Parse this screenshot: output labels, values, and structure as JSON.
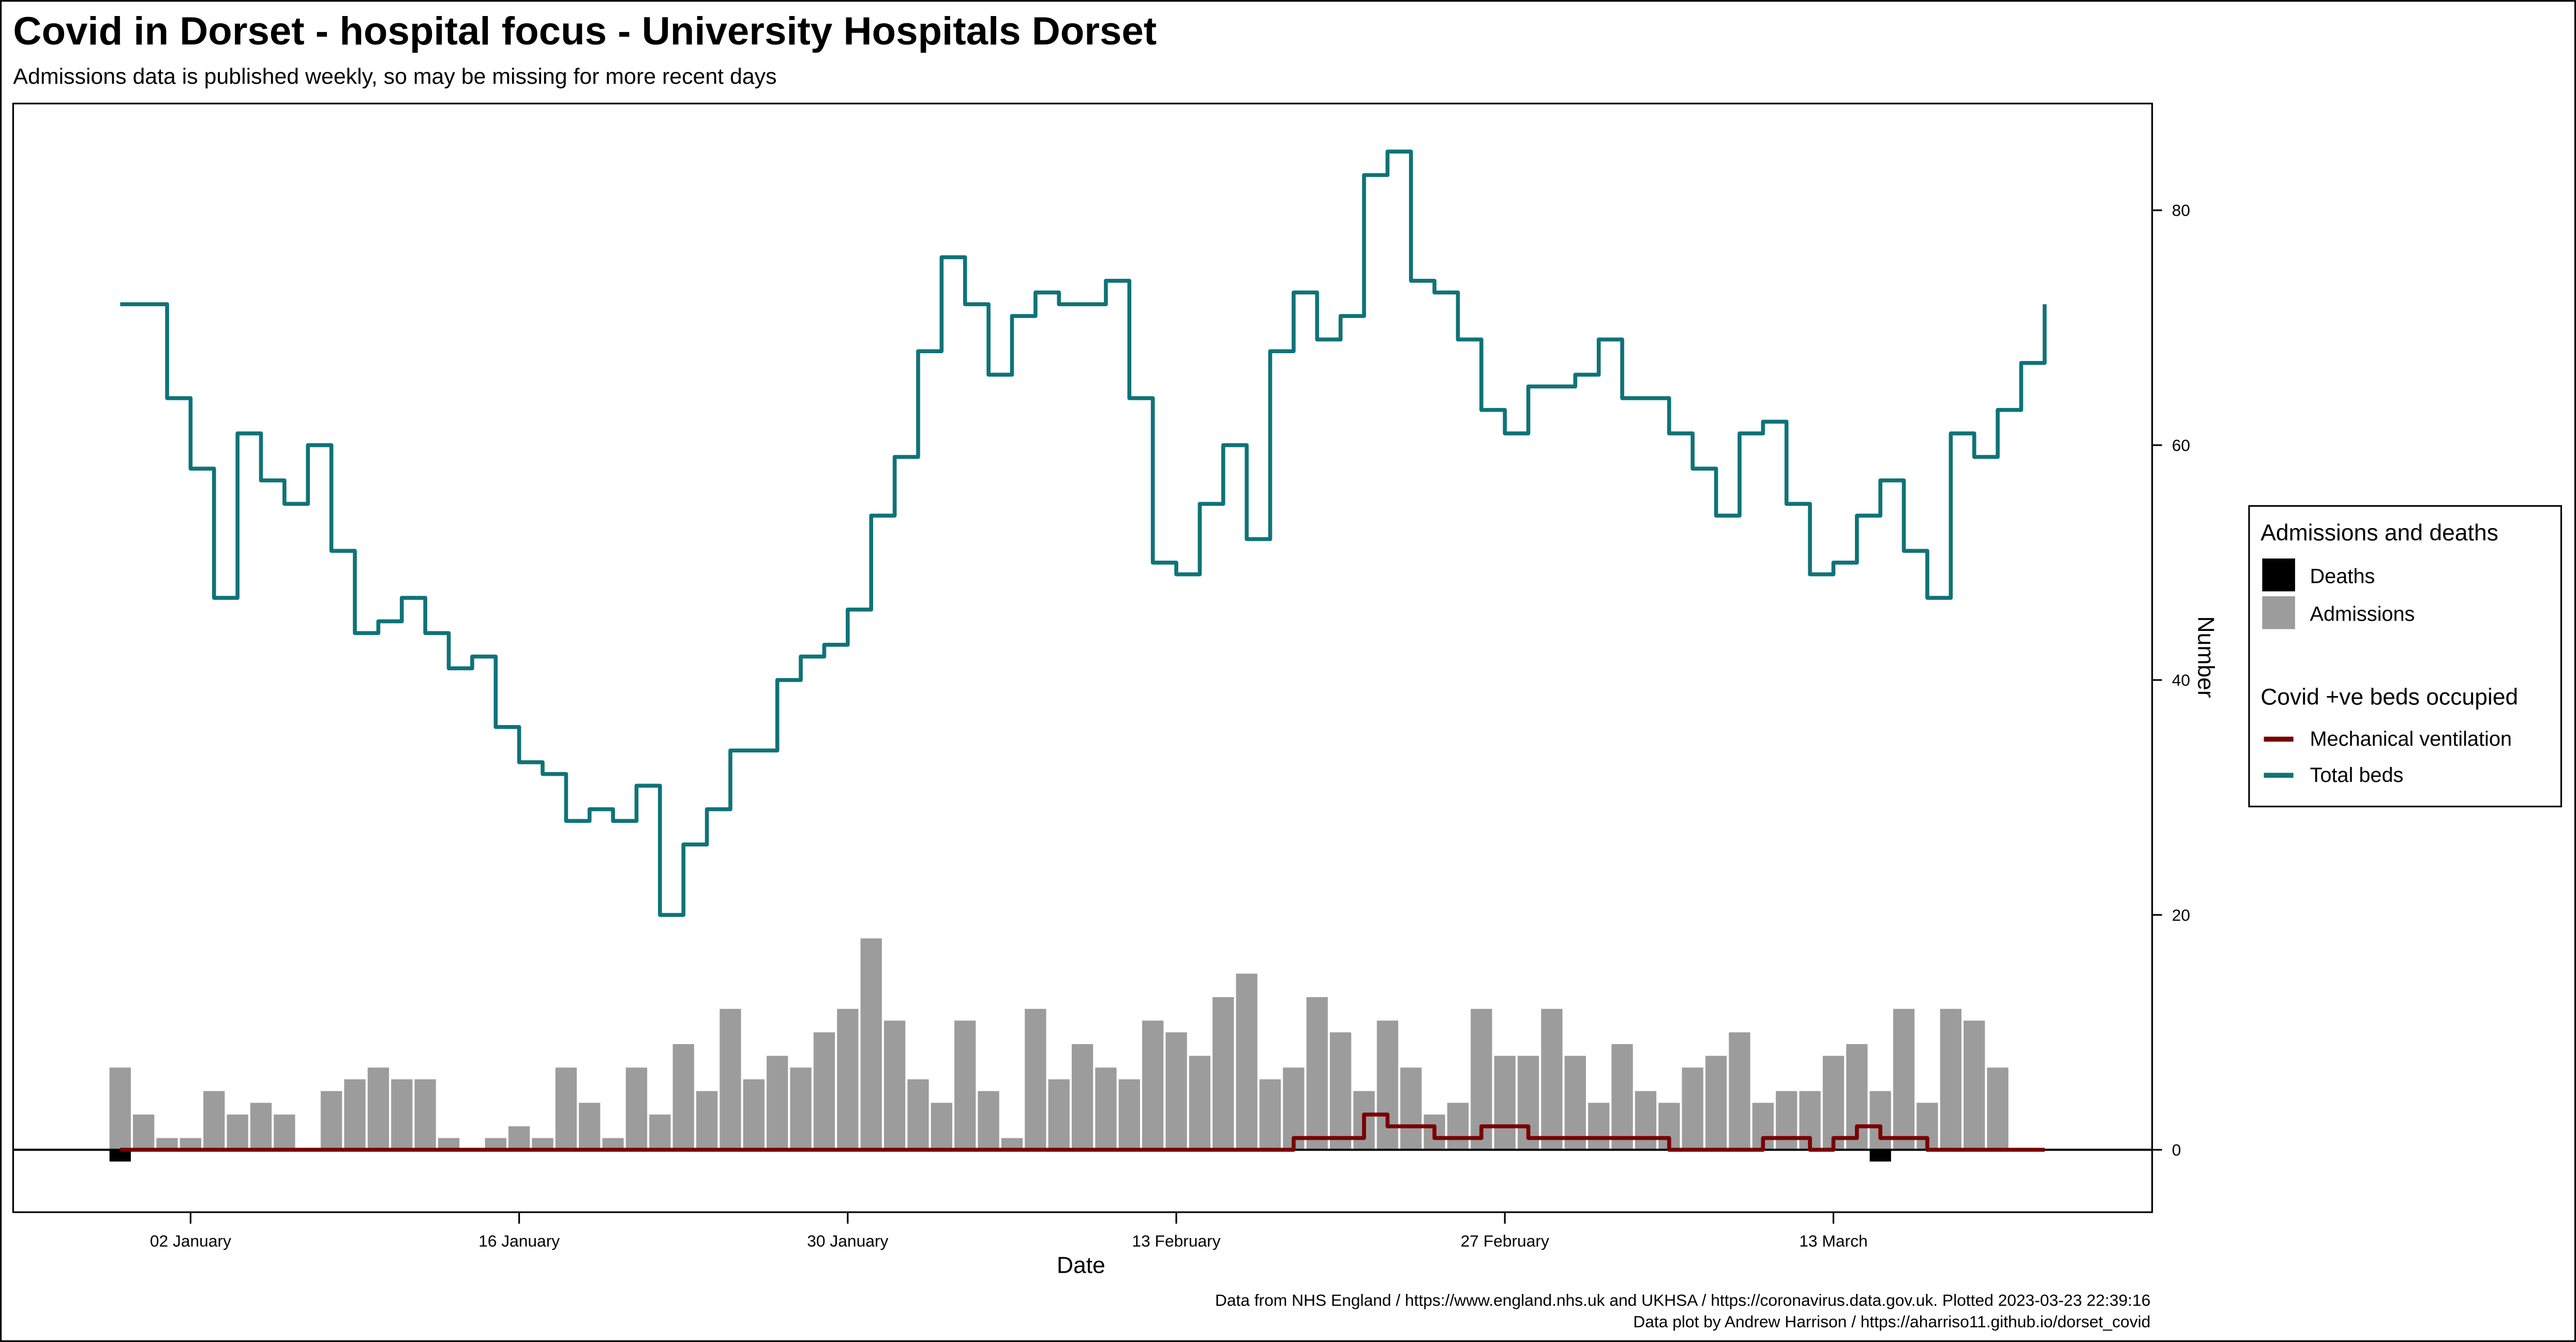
{
  "title": "Covid in Dorset - hospital focus - University Hospitals Dorset",
  "subtitle": "Admissions data is published weekly, so may be missing for more recent days",
  "caption": {
    "line1": "Data from NHS England / https://www.england.nhs.uk and UKHSA / https://coronavirus.data.gov.uk. Plotted 2023-03-23 22:39:16",
    "line2": "Data plot by Andrew Harrison / https://aharriso11.github.io/dorset_covid"
  },
  "legend": {
    "group1_title": "Admissions and deaths",
    "deaths": "Deaths",
    "admissions": "Admissions",
    "group2_title": "Covid +ve beds occupied",
    "ventilation": "Mechanical ventilation",
    "total_beds": "Total beds"
  },
  "colors": {
    "deaths": "#000000",
    "admissions": "#9c9c9c",
    "ventilation": "#7a0000",
    "total_beds": "#0f7378"
  },
  "chart_data": {
    "type": "bar+step-line",
    "xlabel": "Date",
    "ylabel": "Number",
    "y_axis_position": "right",
    "ylim": [
      -5,
      89
    ],
    "xlim": [
      "2022-12-25",
      "2023-03-26"
    ],
    "grid": false,
    "legend_position": "right",
    "x_ticks": [
      {
        "date": "2023-01-02",
        "label": "02 January"
      },
      {
        "date": "2023-01-16",
        "label": "16 January"
      },
      {
        "date": "2023-01-30",
        "label": "30 January"
      },
      {
        "date": "2023-02-13",
        "label": "13 February"
      },
      {
        "date": "2023-02-27",
        "label": "27 February"
      },
      {
        "date": "2023-03-13",
        "label": "13 March"
      }
    ],
    "y_ticks": [
      "0",
      "20",
      "40",
      "60",
      "80"
    ],
    "x": [
      "2022-12-30",
      "2022-12-31",
      "2023-01-01",
      "2023-01-02",
      "2023-01-03",
      "2023-01-04",
      "2023-01-05",
      "2023-01-06",
      "2023-01-07",
      "2023-01-08",
      "2023-01-09",
      "2023-01-10",
      "2023-01-11",
      "2023-01-12",
      "2023-01-13",
      "2023-01-14",
      "2023-01-15",
      "2023-01-16",
      "2023-01-17",
      "2023-01-18",
      "2023-01-19",
      "2023-01-20",
      "2023-01-21",
      "2023-01-22",
      "2023-01-23",
      "2023-01-24",
      "2023-01-25",
      "2023-01-26",
      "2023-01-27",
      "2023-01-28",
      "2023-01-29",
      "2023-01-30",
      "2023-01-31",
      "2023-02-01",
      "2023-02-02",
      "2023-02-03",
      "2023-02-04",
      "2023-02-05",
      "2023-02-06",
      "2023-02-07",
      "2023-02-08",
      "2023-02-09",
      "2023-02-10",
      "2023-02-11",
      "2023-02-12",
      "2023-02-13",
      "2023-02-14",
      "2023-02-15",
      "2023-02-16",
      "2023-02-17",
      "2023-02-18",
      "2023-02-19",
      "2023-02-20",
      "2023-02-21",
      "2023-02-22",
      "2023-02-23",
      "2023-02-24",
      "2023-02-25",
      "2023-02-26",
      "2023-02-27",
      "2023-02-28",
      "2023-03-01",
      "2023-03-02",
      "2023-03-03",
      "2023-03-04",
      "2023-03-05",
      "2023-03-06",
      "2023-03-07",
      "2023-03-08",
      "2023-03-09",
      "2023-03-10",
      "2023-03-11",
      "2023-03-12",
      "2023-03-13",
      "2023-03-14",
      "2023-03-15",
      "2023-03-16",
      "2023-03-17",
      "2023-03-18",
      "2023-03-19",
      "2023-03-20",
      "2023-03-21",
      "2023-03-22"
    ],
    "series": [
      {
        "name": "Admissions",
        "kind": "bar",
        "values": [
          7,
          3,
          1,
          1,
          5,
          3,
          4,
          3,
          0,
          5,
          6,
          7,
          6,
          6,
          1,
          0,
          1,
          2,
          1,
          7,
          4,
          1,
          7,
          3,
          9,
          5,
          12,
          6,
          8,
          7,
          10,
          12,
          18,
          11,
          6,
          4,
          11,
          5,
          1,
          12,
          6,
          9,
          7,
          6,
          11,
          10,
          8,
          13,
          15,
          6,
          7,
          13,
          10,
          5,
          11,
          7,
          3,
          4,
          12,
          8,
          8,
          12,
          8,
          4,
          9,
          5,
          4,
          7,
          8,
          10,
          4,
          5,
          5,
          8,
          9,
          5,
          12,
          4,
          12,
          11,
          7,
          null,
          null
        ]
      },
      {
        "name": "Deaths",
        "kind": "bar-negative",
        "values": [
          1,
          0,
          0,
          0,
          0,
          0,
          0,
          0,
          0,
          0,
          0,
          0,
          0,
          0,
          0,
          0,
          0,
          0,
          0,
          0,
          0,
          0,
          0,
          0,
          0,
          0,
          0,
          0,
          0,
          0,
          0,
          0,
          0,
          0,
          0,
          0,
          0,
          0,
          0,
          0,
          0,
          0,
          0,
          0,
          0,
          0,
          0,
          0,
          0,
          0,
          0,
          0,
          0,
          0,
          0,
          0,
          0,
          0,
          0,
          0,
          0,
          0,
          0,
          0,
          0,
          0,
          0,
          0,
          0,
          0,
          0,
          0,
          0,
          0,
          0,
          1,
          0,
          0,
          0,
          0,
          0,
          null,
          null
        ]
      },
      {
        "name": "Mechanical ventilation",
        "kind": "step",
        "values": [
          0,
          0,
          0,
          0,
          0,
          0,
          0,
          0,
          0,
          0,
          0,
          0,
          0,
          0,
          0,
          0,
          0,
          0,
          0,
          0,
          0,
          0,
          0,
          0,
          0,
          0,
          0,
          0,
          0,
          0,
          0,
          0,
          0,
          0,
          0,
          0,
          0,
          0,
          0,
          0,
          0,
          0,
          0,
          0,
          0,
          0,
          0,
          0,
          0,
          0,
          1,
          1,
          1,
          3,
          2,
          2,
          1,
          1,
          2,
          2,
          1,
          1,
          1,
          1,
          1,
          1,
          0,
          0,
          0,
          0,
          1,
          1,
          0,
          1,
          2,
          1,
          1,
          0,
          0,
          0,
          0,
          0,
          0
        ]
      },
      {
        "name": "Total beds",
        "kind": "step",
        "values": [
          72,
          72,
          64,
          58,
          47,
          61,
          57,
          55,
          60,
          51,
          44,
          45,
          47,
          44,
          41,
          42,
          36,
          33,
          32,
          28,
          29,
          28,
          31,
          20,
          26,
          29,
          34,
          34,
          40,
          42,
          43,
          46,
          54,
          59,
          68,
          76,
          72,
          66,
          71,
          73,
          72,
          72,
          74,
          64,
          50,
          49,
          55,
          60,
          52,
          68,
          73,
          69,
          71,
          83,
          85,
          74,
          73,
          69,
          63,
          61,
          65,
          65,
          66,
          69,
          64,
          64,
          61,
          58,
          54,
          61,
          62,
          55,
          49,
          50,
          54,
          57,
          51,
          47,
          61,
          59,
          63,
          67,
          72
        ]
      }
    ]
  }
}
